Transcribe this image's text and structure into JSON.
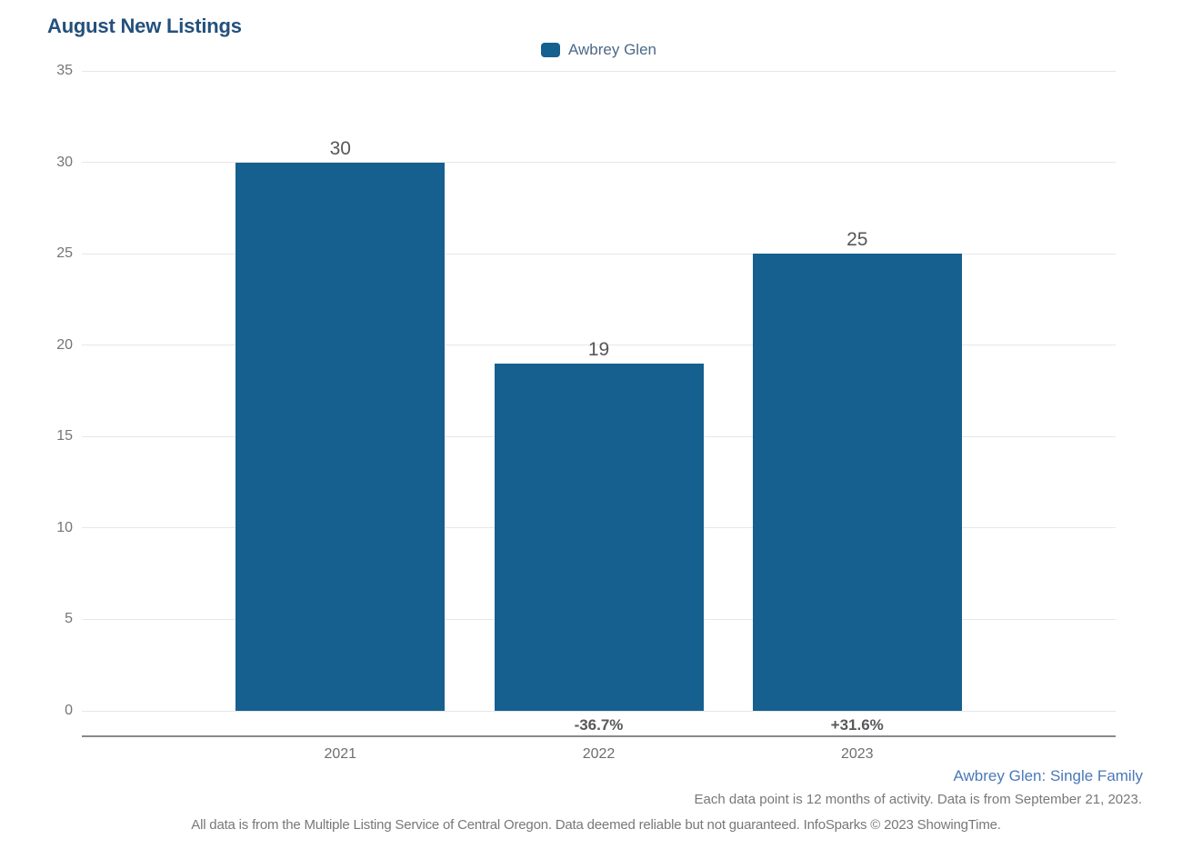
{
  "header": {
    "title": "August New Listings"
  },
  "legend": {
    "series": [
      {
        "label": "Awbrey Glen",
        "color": "#15608F"
      }
    ]
  },
  "chart_data": {
    "type": "bar",
    "title": "August New Listings",
    "series_name": "Awbrey Glen",
    "categories": [
      "2021",
      "2022",
      "2023"
    ],
    "values": [
      30,
      19,
      25
    ],
    "value_labels": [
      "30",
      "19",
      "25"
    ],
    "pct_change_labels": [
      "",
      "-36.7%",
      "+31.6%"
    ],
    "xlabel": "",
    "ylabel": "",
    "ylim": [
      0,
      35
    ],
    "yticks": [
      35,
      30,
      25,
      20,
      15,
      10,
      5,
      0
    ],
    "grid": "horizontal",
    "legend_position": "top-center",
    "bar_color": "#15608F"
  },
  "footer": {
    "series_note": "Awbrey Glen: Single Family",
    "data_note": "Each data point is 12 months of activity. Data is from September 21, 2023.",
    "attribution": "All data is from the Multiple Listing Service of Central Oregon. Data deemed reliable but not guaranteed. InfoSparks © 2023 ShowingTime."
  },
  "colors": {
    "bar": "#15608F",
    "title_text": "#24507C",
    "legend_text": "#4C6A88",
    "axis_text": "#757575",
    "gridline": "#E7E7E7",
    "axis_line": "#87898C",
    "footer_link_text": "#4A79B8",
    "footer_text": "#77787B"
  }
}
